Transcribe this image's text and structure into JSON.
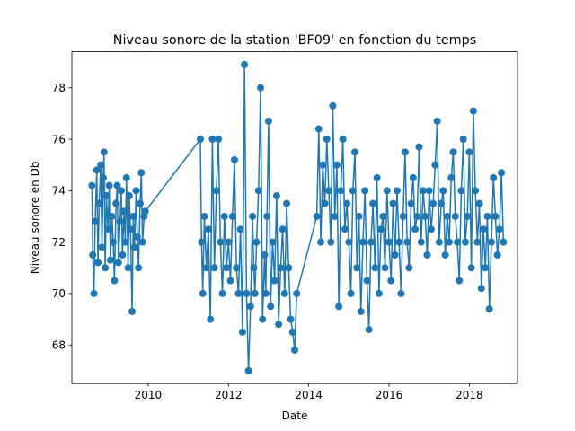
{
  "chart_data": {
    "type": "line",
    "title": "Niveau sonore de la station 'BF09' en fonction du temps",
    "xlabel": "Date",
    "ylabel": "Niveau sonore en Db",
    "xlim": [
      2008.1,
      2019.2
    ],
    "ylim": [
      66.5,
      79.4
    ],
    "x_ticks": [
      2010,
      2012,
      2014,
      2016,
      2018
    ],
    "x_tick_labels": [
      "2010",
      "2012",
      "2014",
      "2016",
      "2018"
    ],
    "y_ticks": [
      68,
      70,
      72,
      74,
      76,
      78
    ],
    "y_tick_labels": [
      "68",
      "70",
      "72",
      "74",
      "76",
      "78"
    ],
    "grid": false,
    "legend": "none",
    "series": [
      {
        "color": "#1f77b4",
        "marker": "circle",
        "x": [
          2008.6,
          2008.62,
          2008.65,
          2008.68,
          2008.72,
          2008.75,
          2008.78,
          2008.82,
          2008.85,
          2008.88,
          2008.9,
          2008.93,
          2008.96,
          2009.0,
          2009.03,
          2009.06,
          2009.1,
          2009.13,
          2009.16,
          2009.2,
          2009.23,
          2009.26,
          2009.3,
          2009.33,
          2009.36,
          2009.4,
          2009.43,
          2009.46,
          2009.5,
          2009.53,
          2009.56,
          2009.6,
          2009.63,
          2009.66,
          2009.7,
          2009.73,
          2009.76,
          2009.8,
          2009.83,
          2009.86,
          2009.9,
          2009.93,
          2011.3,
          2011.33,
          2011.36,
          2011.4,
          2011.45,
          2011.5,
          2011.55,
          2011.6,
          2011.65,
          2011.7,
          2011.75,
          2011.8,
          2011.85,
          2011.9,
          2011.95,
          2012.0,
          2012.05,
          2012.1,
          2012.15,
          2012.2,
          2012.25,
          2012.3,
          2012.35,
          2012.4,
          2012.45,
          2012.5,
          2012.55,
          2012.6,
          2012.63,
          2012.66,
          2012.7,
          2012.75,
          2012.8,
          2012.85,
          2012.9,
          2012.93,
          2012.96,
          2013.0,
          2013.05,
          2013.1,
          2013.15,
          2013.2,
          2013.25,
          2013.3,
          2013.35,
          2013.4,
          2013.45,
          2013.5,
          2013.55,
          2013.6,
          2013.65,
          2013.7,
          2014.2,
          2014.25,
          2014.3,
          2014.35,
          2014.4,
          2014.45,
          2014.5,
          2014.55,
          2014.6,
          2014.65,
          2014.7,
          2014.75,
          2014.8,
          2014.85,
          2014.9,
          2014.95,
          2015.0,
          2015.05,
          2015.1,
          2015.15,
          2015.2,
          2015.25,
          2015.3,
          2015.35,
          2015.4,
          2015.45,
          2015.5,
          2015.55,
          2015.6,
          2015.65,
          2015.7,
          2015.75,
          2015.8,
          2015.85,
          2015.9,
          2015.95,
          2016.0,
          2016.05,
          2016.1,
          2016.15,
          2016.2,
          2016.25,
          2016.3,
          2016.35,
          2016.4,
          2016.45,
          2016.5,
          2016.55,
          2016.6,
          2016.65,
          2016.7,
          2016.75,
          2016.8,
          2016.85,
          2016.9,
          2016.95,
          2017.0,
          2017.05,
          2017.1,
          2017.15,
          2017.2,
          2017.25,
          2017.3,
          2017.35,
          2017.4,
          2017.45,
          2017.5,
          2017.55,
          2017.6,
          2017.65,
          2017.7,
          2017.75,
          2017.8,
          2017.85,
          2017.9,
          2017.95,
          2018.0,
          2018.05,
          2018.1,
          2018.15,
          2018.2,
          2018.25,
          2018.3,
          2018.35,
          2018.4,
          2018.45,
          2018.5,
          2018.55,
          2018.6,
          2018.65,
          2018.7,
          2018.75,
          2018.8,
          2018.85
        ],
        "y": [
          74.2,
          71.5,
          70.0,
          72.8,
          74.8,
          71.2,
          73.5,
          75.0,
          71.8,
          74.5,
          75.5,
          71.0,
          73.8,
          72.5,
          74.2,
          71.3,
          73.0,
          72.0,
          70.5,
          73.5,
          74.2,
          71.2,
          72.8,
          74.0,
          71.5,
          73.2,
          72.0,
          74.5,
          71.0,
          73.8,
          72.5,
          69.3,
          73.0,
          71.8,
          74.0,
          72.2,
          71.0,
          73.5,
          74.7,
          72.0,
          73.0,
          73.2,
          76.0,
          72.0,
          70.0,
          73.0,
          71.0,
          72.5,
          69.0,
          76.0,
          71.0,
          74.0,
          76.0,
          72.0,
          70.0,
          73.0,
          71.0,
          72.0,
          70.5,
          73.0,
          75.2,
          71.0,
          70.0,
          72.5,
          68.5,
          78.9,
          70.0,
          67.0,
          69.5,
          73.0,
          71.0,
          70.0,
          72.0,
          74.0,
          78.0,
          69.0,
          71.5,
          70.0,
          73.0,
          76.7,
          69.5,
          72.0,
          70.5,
          73.8,
          68.8,
          71.0,
          72.5,
          70.0,
          73.5,
          71.0,
          69.0,
          68.5,
          67.8,
          70.0,
          73.0,
          76.4,
          72.0,
          75.0,
          73.5,
          76.0,
          74.0,
          72.0,
          77.3,
          73.0,
          75.0,
          69.5,
          74.0,
          76.0,
          72.5,
          73.5,
          72.0,
          70.0,
          74.0,
          75.5,
          71.0,
          73.0,
          69.3,
          72.0,
          74.0,
          70.5,
          68.6,
          72.0,
          73.5,
          71.0,
          74.5,
          70.0,
          72.5,
          73.0,
          71.0,
          74.0,
          72.0,
          70.5,
          73.5,
          71.5,
          74.0,
          72.0,
          70.0,
          73.0,
          75.5,
          72.0,
          71.0,
          73.5,
          74.5,
          72.5,
          73.0,
          75.7,
          72.0,
          74.0,
          73.0,
          71.5,
          74.0,
          72.5,
          73.5,
          75.0,
          76.7,
          72.0,
          73.5,
          74.0,
          71.5,
          73.0,
          72.0,
          74.5,
          75.5,
          73.0,
          72.0,
          70.5,
          74.0,
          76.0,
          72.0,
          73.0,
          75.5,
          71.0,
          77.1,
          74.0,
          72.0,
          73.5,
          70.2,
          72.5,
          71.0,
          73.0,
          69.4,
          72.0,
          74.5,
          73.0,
          71.5,
          72.5,
          74.7,
          72.0
        ]
      }
    ]
  }
}
